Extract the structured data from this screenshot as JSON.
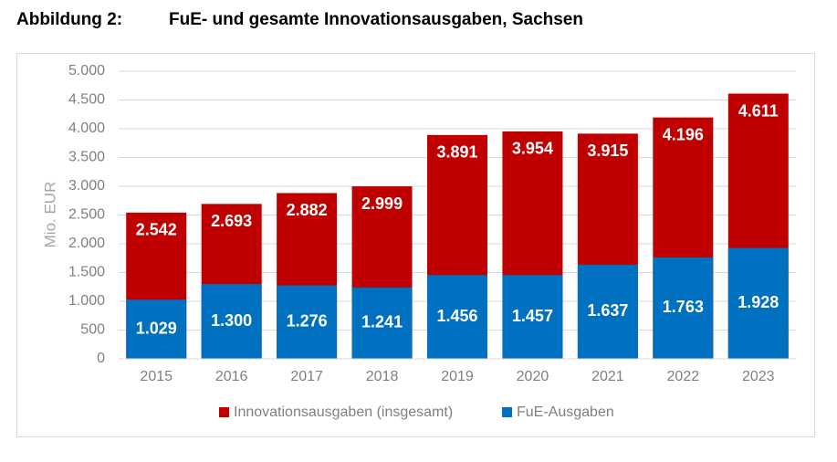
{
  "chart_data": {
    "type": "bar",
    "barmode": "overlay",
    "figure_label": "Abbildung 2:",
    "title": "FuE- und gesamte Innovationsausgaben, Sachsen",
    "y_label": "Mio. EUR",
    "categories": [
      "2015",
      "2016",
      "2017",
      "2018",
      "2019",
      "2020",
      "2021",
      "2022",
      "2023"
    ],
    "series": [
      {
        "name": "Innovationsausgaben (insgesamt)",
        "color": "#c00000",
        "values": [
          2542,
          2693,
          2882,
          2999,
          3891,
          3954,
          3915,
          4196,
          4611
        ],
        "value_labels": [
          "2.542",
          "2.693",
          "2.882",
          "2.999",
          "3.891",
          "3.954",
          "3.915",
          "4.196",
          "4.611"
        ]
      },
      {
        "name": "FuE-Ausgaben",
        "color": "#0070c0",
        "values": [
          1029,
          1300,
          1276,
          1241,
          1456,
          1457,
          1637,
          1763,
          1928
        ],
        "value_labels": [
          "1.029",
          "1.300",
          "1.276",
          "1.241",
          "1.456",
          "1.457",
          "1.637",
          "1.763",
          "1.928"
        ]
      }
    ],
    "ylim": [
      0,
      5000
    ],
    "yticks": [
      0,
      500,
      {
        "value": 1000,
        "label": "1.000"
      },
      {
        "value": 1500,
        "label": "1.500"
      },
      {
        "value": 2000,
        "label": "2.000"
      },
      {
        "value": 2500,
        "label": "2.500"
      },
      {
        "value": 3000,
        "label": "3.000"
      },
      {
        "value": 3500,
        "label": "3.500"
      },
      {
        "value": 4000,
        "label": "4.000"
      },
      {
        "value": 4500,
        "label": "4.500"
      },
      {
        "value": 5000,
        "label": "5.000"
      }
    ],
    "grid": true,
    "legend": "bottom"
  }
}
